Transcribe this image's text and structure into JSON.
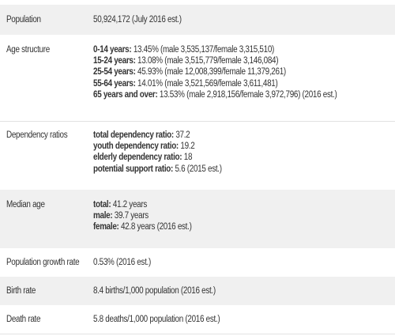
{
  "population": {
    "label": "Population",
    "value": "50,924,172 (July 2016 est.)"
  },
  "age_structure": {
    "label": "Age structure",
    "items": [
      {
        "key": "0-14 years:",
        "value": " 13.45% (male 3,535,137/female 3,315,510)"
      },
      {
        "key": "15-24 years:",
        "value": " 13.08% (male 3,515,779/female 3,146,084)"
      },
      {
        "key": "25-54 years:",
        "value": " 45.93% (male 12,008,399/female 11,379,261)"
      },
      {
        "key": "55-64 years:",
        "value": " 14.01% (male 3,521,569/female 3,611,481)"
      },
      {
        "key": "65 years and over:",
        "value": " 13.53% (male 2,918,156/female 3,972,796) (2016 est.)"
      }
    ]
  },
  "dependency_ratios": {
    "label": "Dependency ratios",
    "items": [
      {
        "key": "total dependency ratio:",
        "value": " 37.2"
      },
      {
        "key": "youth dependency ratio:",
        "value": " 19.2"
      },
      {
        "key": "elderly dependency ratio:",
        "value": " 18"
      },
      {
        "key": "potential support ratio:",
        "value": " 5.6 (2015 est.)"
      }
    ]
  },
  "median_age": {
    "label": "Median age",
    "items": [
      {
        "key": "total:",
        "value": " 41.2 years"
      },
      {
        "key": "male:",
        "value": " 39.7 years"
      },
      {
        "key": "female:",
        "value": " 42.8 years (2016 est.)"
      }
    ]
  },
  "population_growth_rate": {
    "label": "Population growth rate",
    "value": "0.53% (2016 est.)"
  },
  "birth_rate": {
    "label": "Birth rate",
    "value": "8.4 births/1,000 population (2016 est.)"
  },
  "death_rate": {
    "label": "Death rate",
    "value": "5.8 deaths/1,000 population (2016 est.)"
  }
}
